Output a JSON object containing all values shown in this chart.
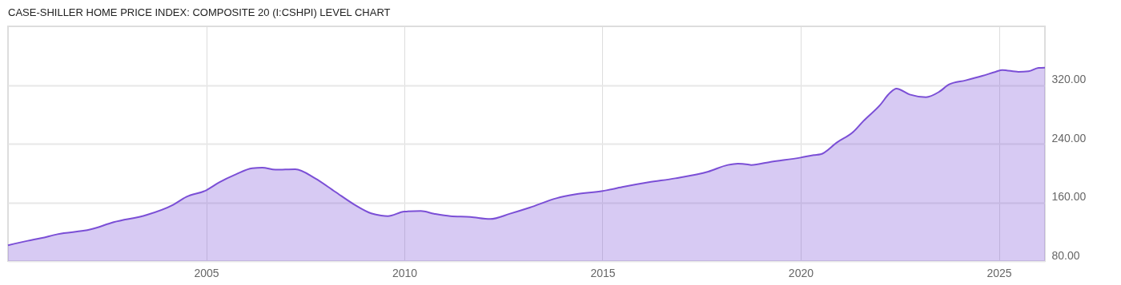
{
  "chart_data": {
    "type": "area",
    "title": "CASE-SHILLER HOME PRICE INDEX: COMPOSITE 20 (I:CSHPI) LEVEL CHART",
    "x": [
      "2000-01",
      "2000-07",
      "2000-11",
      "2001-04",
      "2002-02",
      "2002-09",
      "2003-07",
      "2004-03",
      "2004-07",
      "2005-01",
      "2005-05",
      "2005-10",
      "2006-03",
      "2006-06",
      "2006-10",
      "2007-04",
      "2007-10",
      "2008-04",
      "2008-10",
      "2009-03",
      "2009-06",
      "2009-08",
      "2010-01",
      "2010-06",
      "2010-10",
      "2011-03",
      "2011-09",
      "2012-03",
      "2012-09",
      "2013-03",
      "2013-11",
      "2014-05",
      "2015-01",
      "2015-07",
      "2016-03",
      "2016-11",
      "2017-09",
      "2018-03",
      "2018-06",
      "2018-09",
      "2018-10",
      "2019-04",
      "2020-01",
      "2020-05",
      "2020-07",
      "2020-12",
      "2021-05",
      "2021-08",
      "2022-01",
      "2022-04",
      "2022-06",
      "2022-10",
      "2023-03",
      "2023-07",
      "2023-10",
      "2024-03",
      "2024-08",
      "2024-12",
      "2025-02",
      "2025-07",
      "2025-10",
      "2026-01",
      "2026-03"
    ],
    "series": [
      {
        "color": "#7b4fd6",
        "values": [
          101.4,
          107.6,
          111.2,
          116.6,
          123.2,
          133,
          142.8,
          156.6,
          167.4,
          176.5,
          187.4,
          198.3,
          206.6,
          207.4,
          204.5,
          205.2,
          192.8,
          174.7,
          156.6,
          145,
          142,
          141.3,
          147.5,
          148.2,
          144.6,
          141.3,
          140.2,
          137.3,
          144.6,
          152.9,
          165.6,
          171.1,
          175.4,
          180.9,
          187.4,
          192.8,
          201.9,
          211,
          212.8,
          211.7,
          211,
          215.3,
          221.1,
          224.4,
          225.5,
          241.8,
          256.3,
          270.9,
          292.6,
          309,
          315.1,
          307.1,
          303.5,
          310.8,
          320.9,
          326.4,
          332.5,
          338,
          340.5,
          338,
          338.7,
          343.4,
          343.8
        ]
      }
    ],
    "xlim": [
      "2000-01",
      "2026-03"
    ],
    "xticks": [
      "2005",
      "2010",
      "2015",
      "2020",
      "2025"
    ],
    "ylim": [
      80,
      400
    ],
    "yticks": [
      {
        "value": 80,
        "label": "80.00"
      },
      {
        "value": 160,
        "label": "160.00"
      },
      {
        "value": 240,
        "label": "240.00"
      },
      {
        "value": 320,
        "label": "320.00"
      }
    ],
    "grid": true
  }
}
